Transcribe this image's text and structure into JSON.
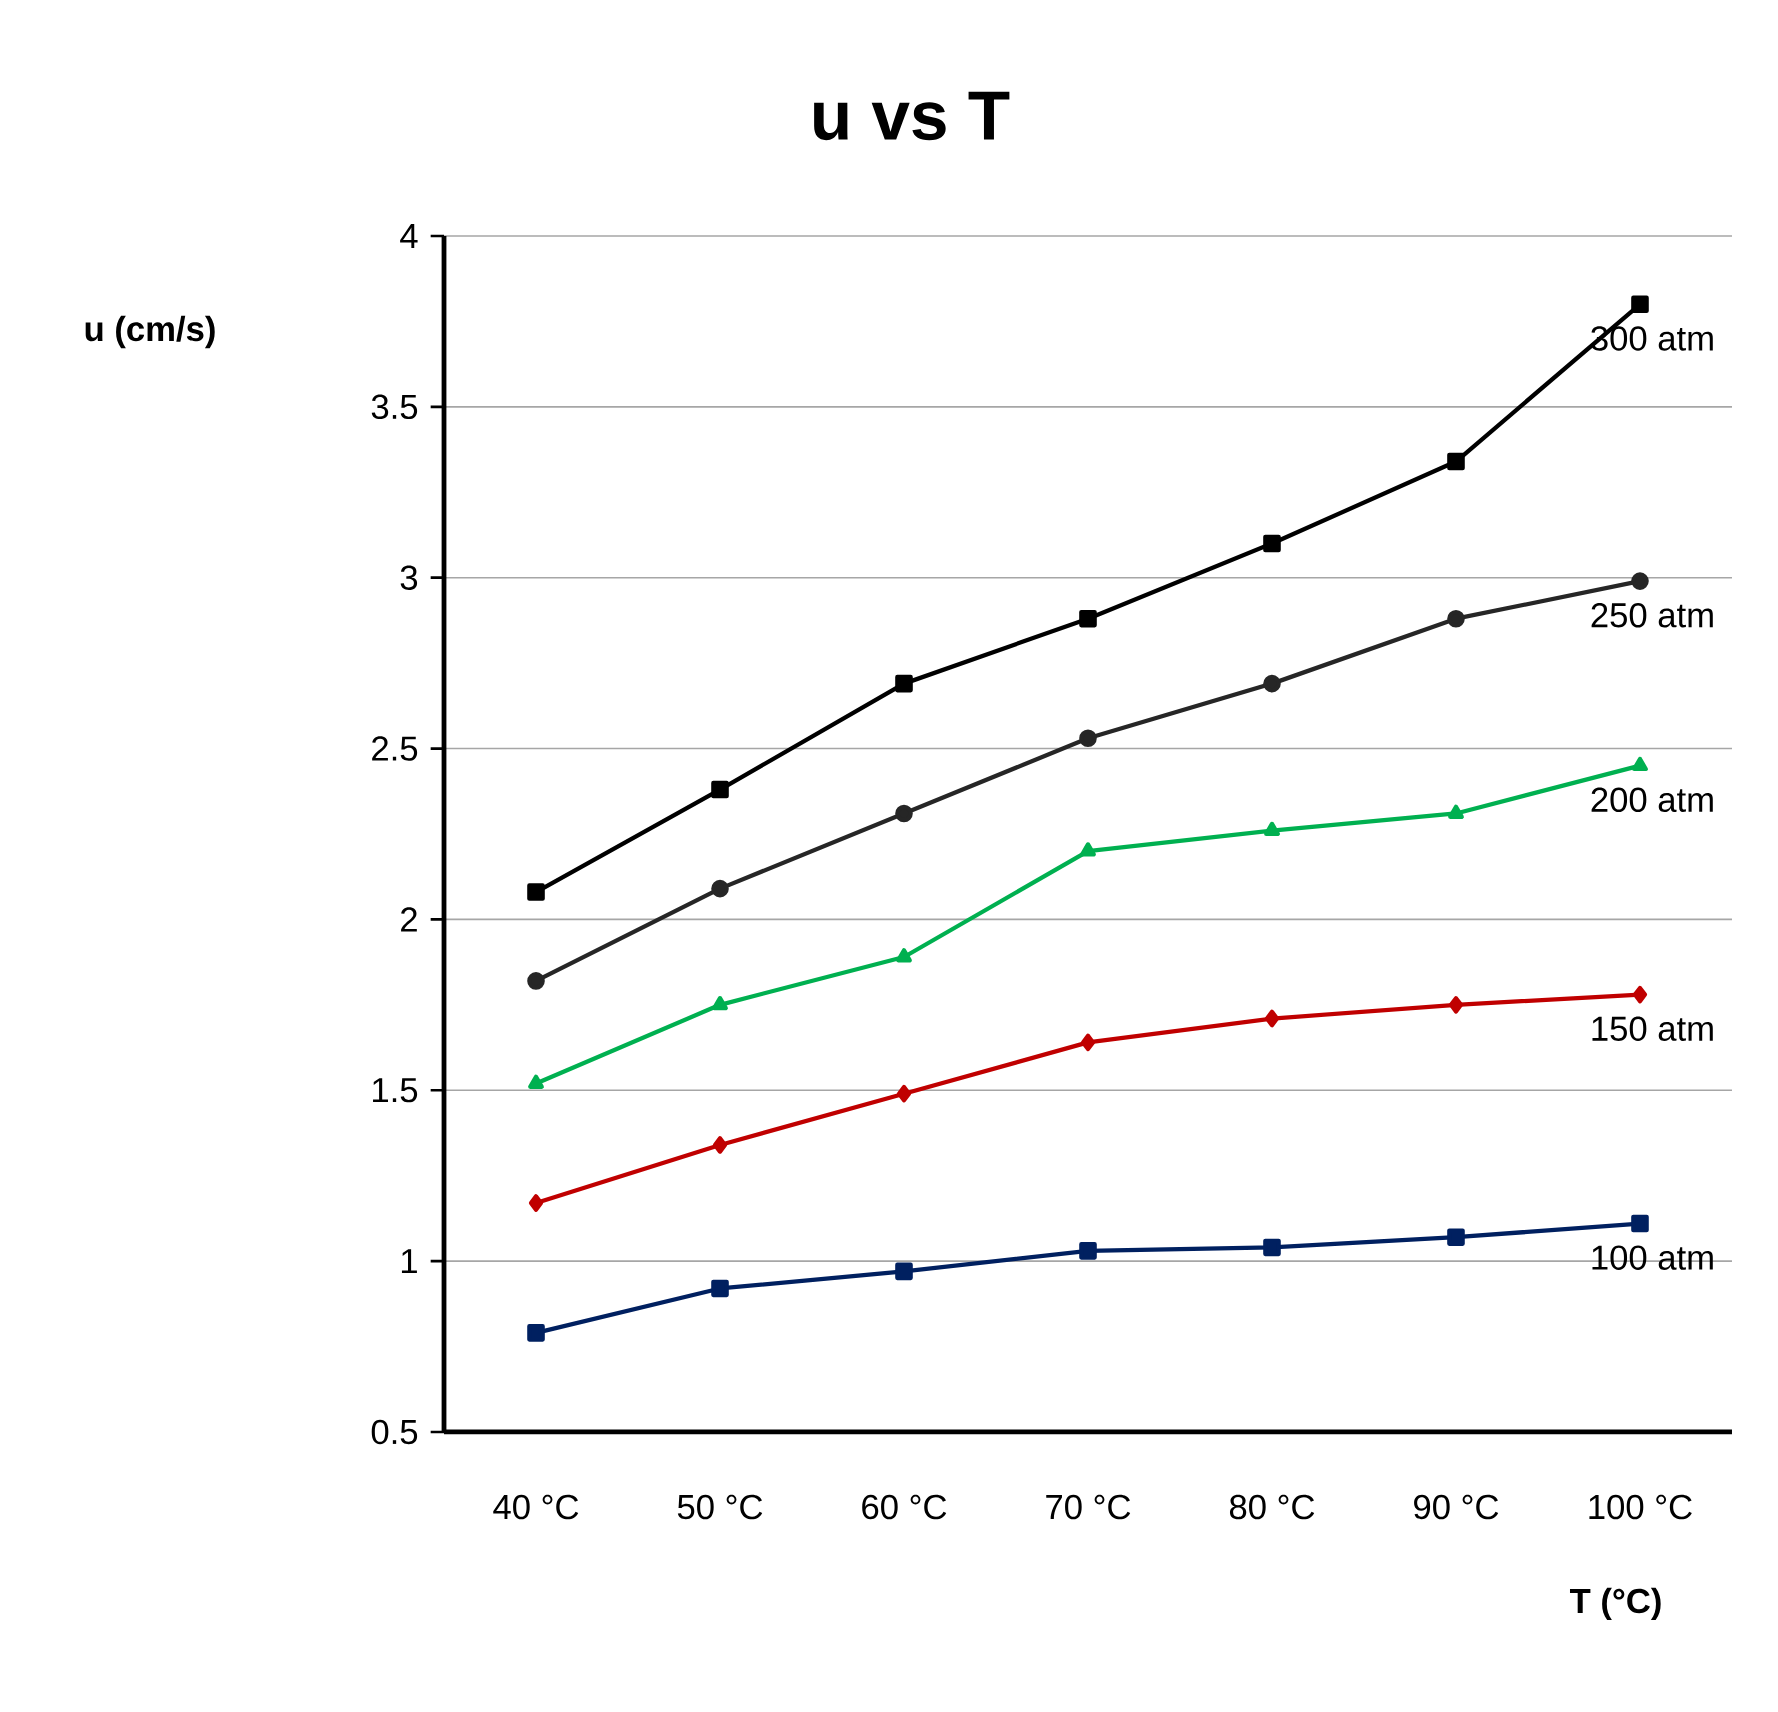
{
  "chart_data": {
    "type": "line",
    "title": "u vs T",
    "xlabel": "T (°C)",
    "ylabel": "u (cm/s)",
    "categories": [
      "40 °C",
      "50 °C",
      "60 °C",
      "70 °C",
      "80 °C",
      "90 °C",
      "100 °C"
    ],
    "series": [
      {
        "name": "300 atm",
        "color": "#000000",
        "marker": "square",
        "values": [
          2.08,
          2.38,
          2.69,
          2.88,
          3.1,
          3.34,
          3.8
        ]
      },
      {
        "name": "250 atm",
        "color": "#262626",
        "marker": "circle",
        "values": [
          1.82,
          2.09,
          2.31,
          2.53,
          2.69,
          2.88,
          2.99
        ]
      },
      {
        "name": "200 atm",
        "color": "#00b050",
        "marker": "triangle",
        "values": [
          1.52,
          1.75,
          1.89,
          2.2,
          2.26,
          2.31,
          2.45
        ]
      },
      {
        "name": "150 atm",
        "color": "#c00000",
        "marker": "diamond",
        "values": [
          1.17,
          1.34,
          1.49,
          1.64,
          1.71,
          1.75,
          1.78
        ]
      },
      {
        "name": "100 atm",
        "color": "#002060",
        "marker": "square",
        "values": [
          0.79,
          0.92,
          0.97,
          1.03,
          1.04,
          1.07,
          1.11
        ]
      }
    ],
    "ylim": [
      0.5,
      4
    ],
    "yticks": [
      0.5,
      1,
      1.5,
      2,
      2.5,
      3,
      3.5,
      4
    ],
    "grid": "y",
    "legend": false,
    "line_style": "solid"
  }
}
